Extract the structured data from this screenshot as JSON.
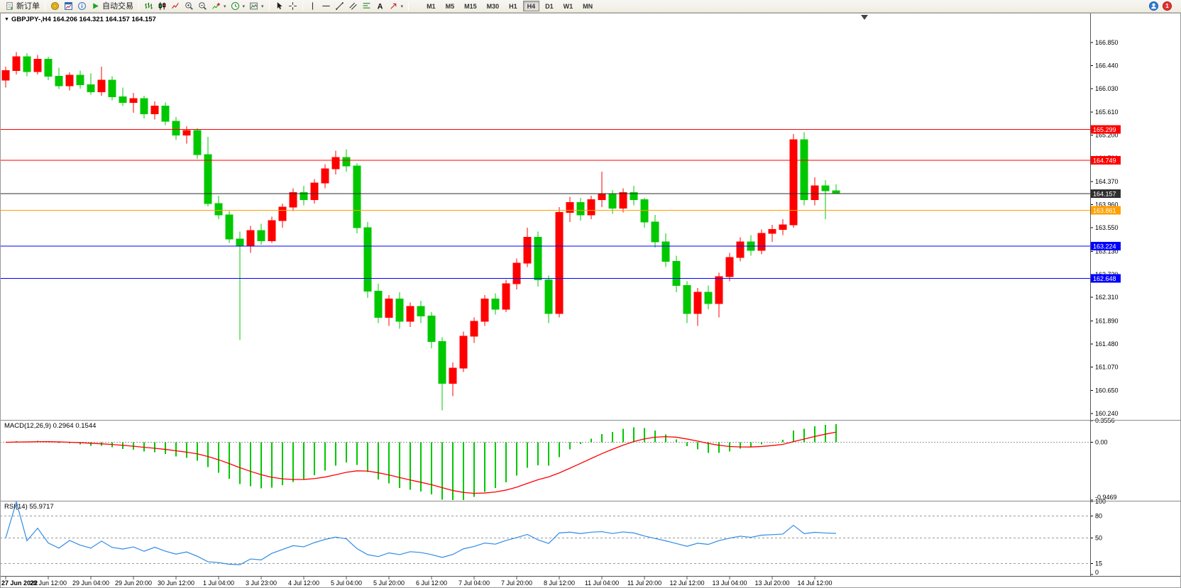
{
  "toolbar": {
    "items": [
      {
        "name": "new-order-button",
        "icon": "doc",
        "label": "新订单"
      },
      {
        "separator": true
      },
      {
        "name": "market-watch-button",
        "icon": "coin"
      },
      {
        "name": "data-window-button",
        "icon": "chartwin"
      },
      {
        "name": "navigator-button",
        "icon": "info"
      },
      {
        "name": "auto-trading-button",
        "icon": "play",
        "label": "自动交易"
      },
      {
        "separator": true
      },
      {
        "name": "bar-chart-button",
        "icon": "bars"
      },
      {
        "name": "candlestick-chart-button",
        "icon": "candles"
      },
      {
        "name": "line-chart-button",
        "icon": "linechart"
      },
      {
        "name": "zoom-in-button",
        "icon": "zoomin"
      },
      {
        "name": "zoom-out-button",
        "icon": "zoomout"
      },
      {
        "name": "indicators-button",
        "icon": "indicators",
        "dropdown": true
      },
      {
        "name": "periods-button",
        "icon": "clock",
        "dropdown": true
      },
      {
        "name": "templates-button",
        "icon": "template",
        "dropdown": true
      },
      {
        "separator": true
      },
      {
        "name": "cursor-button",
        "icon": "cursor"
      },
      {
        "name": "crosshair-button",
        "icon": "crosshair"
      },
      {
        "separator": true
      },
      {
        "name": "vertical-line-button",
        "icon": "vline"
      },
      {
        "name": "horizontal-line-button",
        "icon": "hline"
      },
      {
        "name": "trendline-button",
        "icon": "trendline"
      },
      {
        "name": "channel-button",
        "icon": "channel"
      },
      {
        "name": "fibonacci-button",
        "icon": "fibo"
      },
      {
        "name": "text-button",
        "icon": "text"
      },
      {
        "name": "arrows-button",
        "icon": "arrow",
        "dropdown": true
      },
      {
        "separator": true
      }
    ],
    "timeframes": [
      {
        "label": "M1"
      },
      {
        "label": "M5"
      },
      {
        "label": "M15"
      },
      {
        "label": "M30"
      },
      {
        "label": "H1"
      },
      {
        "label": "H4",
        "active": true
      },
      {
        "label": "D1"
      },
      {
        "label": "W1"
      },
      {
        "label": "MN"
      }
    ],
    "right_icons": [
      {
        "name": "community-button",
        "icon": "bluecircle"
      },
      {
        "name": "notifications-button",
        "icon": "redcircle",
        "badge": "1"
      }
    ]
  },
  "chart": {
    "title": "GBPJPY-,H4 164.206 164.321 164.157 164.157",
    "symbol": "GBPJPY-",
    "period": "H4",
    "current_bar_display": {
      "open": "164.206",
      "high": "164.321",
      "low": "164.157",
      "close": "164.157"
    }
  },
  "chart_data": {
    "type": "candlestick",
    "symbol": "GBPJPY-",
    "timeframe": "H4",
    "colors": {
      "bull": "#FF0000",
      "bear": "#00C800"
    },
    "price_axis_ticks": [
      "166.850",
      "166.440",
      "166.030",
      "165.610",
      "165.200",
      "164.790",
      "164.370",
      "163.960",
      "163.550",
      "163.130",
      "162.720",
      "162.310",
      "161.890",
      "161.480",
      "161.070",
      "160.650",
      "160.240"
    ],
    "time_labels": [
      "27 Jun 2022",
      "28 Jun 12:00",
      "29 Jun 04:00",
      "29 Jun 20:00",
      "30 Jun 12:00",
      "1 Jul 04:00",
      "3 Jul 23:00",
      "4 Jul 12:00",
      "5 Jul 04:00",
      "5 Jul 20:00",
      "6 Jul 12:00",
      "7 Jul 04:00",
      "7 Jul 20:00",
      "8 Jul 12:00",
      "11 Jul 04:00",
      "11 Jul 20:00",
      "12 Jul 12:00",
      "13 Jul 04:00",
      "13 Jul 20:00",
      "14 Jul 12:00"
    ],
    "bars_per_label": 4,
    "levels": [
      {
        "price": 165.299,
        "label": "165.299",
        "color": "#FF0000",
        "name": "resistance-line-165299"
      },
      {
        "price": 164.749,
        "label": "164.749",
        "color": "#FF0000",
        "name": "resistance-line-164749"
      },
      {
        "price": 163.861,
        "label": "163.861",
        "color": "#FFA000",
        "name": "pivot-line-163861"
      },
      {
        "price": 163.224,
        "label": "163.224",
        "color": "#0000FF",
        "name": "support-line-163224"
      },
      {
        "price": 162.648,
        "label": "162.648",
        "color": "#0000FF",
        "name": "support-line-162648"
      },
      {
        "price": 164.157,
        "label": "164.157",
        "color": "#2F2F2F",
        "name": "bid-price-line"
      }
    ],
    "indicators": {
      "macd": {
        "label": "MACD(12,26,9) 0.2964 0.1544",
        "params": "12,26,9",
        "value_macd": "0.2964",
        "value_signal": "0.1544",
        "scale_ticks": [
          "0.3556",
          "0.00",
          "-0.9469"
        ],
        "max": 0.3556,
        "min": -0.9469,
        "histogram_color": "#00C800",
        "signal_color": "#FF0000"
      },
      "rsi": {
        "label": "RSI(14) 55.9717",
        "params": "14",
        "value": "55.9717",
        "scale_ticks": [
          "100",
          "80",
          "50",
          "15",
          "0"
        ],
        "levels": [
          80,
          50,
          15
        ],
        "max": 100,
        "min": 0,
        "color": "#2E8BE6"
      }
    },
    "ohlc": [
      [
        166.18,
        166.42,
        166.05,
        166.35
      ],
      [
        166.35,
        166.68,
        166.28,
        166.6
      ],
      [
        166.6,
        166.66,
        166.25,
        166.33
      ],
      [
        166.33,
        166.63,
        166.28,
        166.55
      ],
      [
        166.55,
        166.6,
        166.18,
        166.25
      ],
      [
        166.25,
        166.4,
        166.02,
        166.08
      ],
      [
        166.08,
        166.32,
        166.0,
        166.27
      ],
      [
        166.27,
        166.35,
        166.03,
        166.1
      ],
      [
        166.1,
        166.3,
        165.92,
        165.97
      ],
      [
        165.97,
        166.42,
        165.9,
        166.18
      ],
      [
        166.18,
        166.25,
        165.82,
        165.88
      ],
      [
        165.88,
        166.05,
        165.72,
        165.78
      ],
      [
        165.78,
        165.95,
        165.6,
        165.85
      ],
      [
        165.85,
        165.9,
        165.5,
        165.58
      ],
      [
        165.58,
        165.8,
        165.48,
        165.72
      ],
      [
        165.72,
        165.78,
        165.38,
        165.45
      ],
      [
        165.45,
        165.52,
        165.12,
        165.2
      ],
      [
        165.2,
        165.36,
        165.05,
        165.28
      ],
      [
        165.28,
        165.33,
        164.78,
        164.85
      ],
      [
        164.85,
        165.17,
        163.93,
        163.98
      ],
      [
        163.98,
        164.12,
        163.7,
        163.78
      ],
      [
        163.78,
        163.85,
        163.28,
        163.35
      ],
      [
        163.35,
        163.48,
        161.55,
        163.22
      ],
      [
        163.22,
        163.58,
        163.1,
        163.5
      ],
      [
        163.5,
        163.62,
        163.25,
        163.32
      ],
      [
        163.32,
        163.75,
        163.28,
        163.68
      ],
      [
        163.68,
        163.98,
        163.55,
        163.92
      ],
      [
        163.92,
        164.25,
        163.85,
        164.18
      ],
      [
        164.18,
        164.3,
        163.95,
        164.05
      ],
      [
        164.05,
        164.42,
        163.98,
        164.35
      ],
      [
        164.35,
        164.68,
        164.25,
        164.6
      ],
      [
        164.6,
        164.92,
        164.5,
        164.8
      ],
      [
        164.8,
        164.95,
        164.55,
        164.65
      ],
      [
        164.65,
        164.7,
        163.45,
        163.55
      ],
      [
        163.55,
        163.65,
        162.3,
        162.42
      ],
      [
        162.42,
        162.55,
        161.85,
        161.95
      ],
      [
        161.95,
        162.35,
        161.8,
        162.28
      ],
      [
        162.28,
        162.4,
        161.75,
        161.88
      ],
      [
        161.88,
        162.22,
        161.78,
        162.15
      ],
      [
        162.15,
        162.25,
        161.85,
        161.98
      ],
      [
        161.98,
        162.05,
        161.4,
        161.52
      ],
      [
        161.52,
        161.6,
        160.3,
        160.78
      ],
      [
        160.78,
        161.15,
        160.55,
        161.05
      ],
      [
        161.05,
        161.7,
        160.98,
        161.62
      ],
      [
        161.62,
        161.95,
        161.5,
        161.88
      ],
      [
        161.88,
        162.35,
        161.8,
        162.28
      ],
      [
        162.28,
        162.38,
        162.0,
        162.1
      ],
      [
        162.1,
        162.62,
        162.05,
        162.55
      ],
      [
        162.55,
        163.0,
        162.45,
        162.92
      ],
      [
        162.92,
        163.55,
        162.85,
        163.38
      ],
      [
        163.38,
        163.48,
        162.5,
        162.62
      ],
      [
        162.62,
        162.7,
        161.85,
        162.02
      ],
      [
        162.02,
        163.92,
        161.95,
        163.82
      ],
      [
        163.82,
        164.1,
        163.65,
        164.0
      ],
      [
        164.0,
        164.08,
        163.68,
        163.78
      ],
      [
        163.78,
        164.12,
        163.7,
        164.05
      ],
      [
        164.05,
        164.55,
        163.92,
        164.15
      ],
      [
        164.15,
        164.22,
        163.8,
        163.9
      ],
      [
        163.9,
        164.25,
        163.82,
        164.18
      ],
      [
        164.18,
        164.3,
        163.95,
        164.05
      ],
      [
        164.05,
        164.08,
        163.55,
        163.65
      ],
      [
        163.65,
        163.78,
        163.2,
        163.3
      ],
      [
        163.3,
        163.45,
        162.85,
        162.95
      ],
      [
        162.95,
        163.05,
        162.4,
        162.52
      ],
      [
        162.52,
        162.6,
        161.85,
        162.02
      ],
      [
        162.02,
        162.48,
        161.8,
        162.4
      ],
      [
        162.4,
        162.52,
        162.1,
        162.2
      ],
      [
        162.2,
        162.75,
        161.95,
        162.68
      ],
      [
        162.68,
        163.1,
        162.6,
        163.02
      ],
      [
        163.02,
        163.38,
        162.95,
        163.3
      ],
      [
        163.3,
        163.42,
        163.05,
        163.15
      ],
      [
        163.15,
        163.52,
        163.08,
        163.45
      ],
      [
        163.45,
        163.6,
        163.3,
        163.52
      ],
      [
        163.52,
        163.7,
        163.42,
        163.6
      ],
      [
        163.6,
        165.22,
        163.55,
        165.12
      ],
      [
        165.12,
        165.25,
        163.95,
        164.05
      ],
      [
        164.05,
        164.45,
        163.95,
        164.3
      ],
      [
        164.3,
        164.4,
        163.7,
        164.21
      ],
      [
        164.206,
        164.321,
        164.157,
        164.157
      ]
    ]
  }
}
